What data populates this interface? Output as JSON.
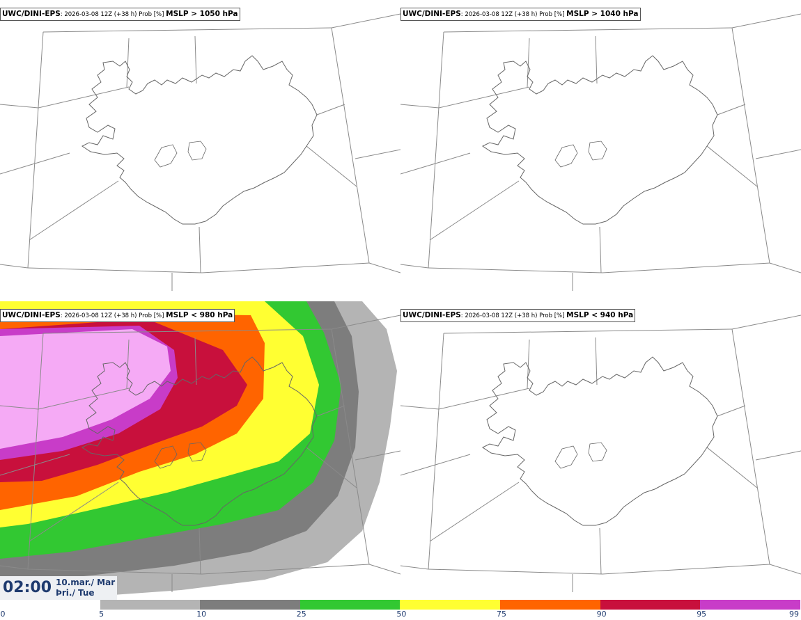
{
  "panels": [
    {
      "model": "UWC/DINI-EPS",
      "meta": ": 2026-03-08 12Z (+38 h) Prob [%] ",
      "threshold": "MSLP > 1050 hPa",
      "filled": false
    },
    {
      "model": "UWC/DINI-EPS",
      "meta": ": 2026-03-08 12Z (+38 h) Prob [%] ",
      "threshold": "MSLP > 1040 hPa",
      "filled": false
    },
    {
      "model": "UWC/DINI-EPS",
      "meta": ": 2026-03-08 12Z (+38 h) Prob [%] ",
      "threshold": "MSLP < 980 hPa",
      "filled": true
    },
    {
      "model": "UWC/DINI-EPS",
      "meta": ": 2026-03-08 12Z (+38 h) Prob [%] ",
      "threshold": "MSLP < 940 hPa",
      "filled": false
    }
  ],
  "time": {
    "clock": "02:00",
    "date_line1": "10.mar./ Mar",
    "date_line2": "Þri./ Tue"
  },
  "colorbar": {
    "ticks": [
      "0",
      "5",
      "10",
      "25",
      "50",
      "75",
      "90",
      "95",
      "99"
    ],
    "colors": [
      "#ffffff",
      "#b4b4b4",
      "#7d7d7d",
      "#32c832",
      "#ffff32",
      "#ff6400",
      "#c8103c",
      "#c83cc8",
      "#f5aaf5"
    ]
  }
}
